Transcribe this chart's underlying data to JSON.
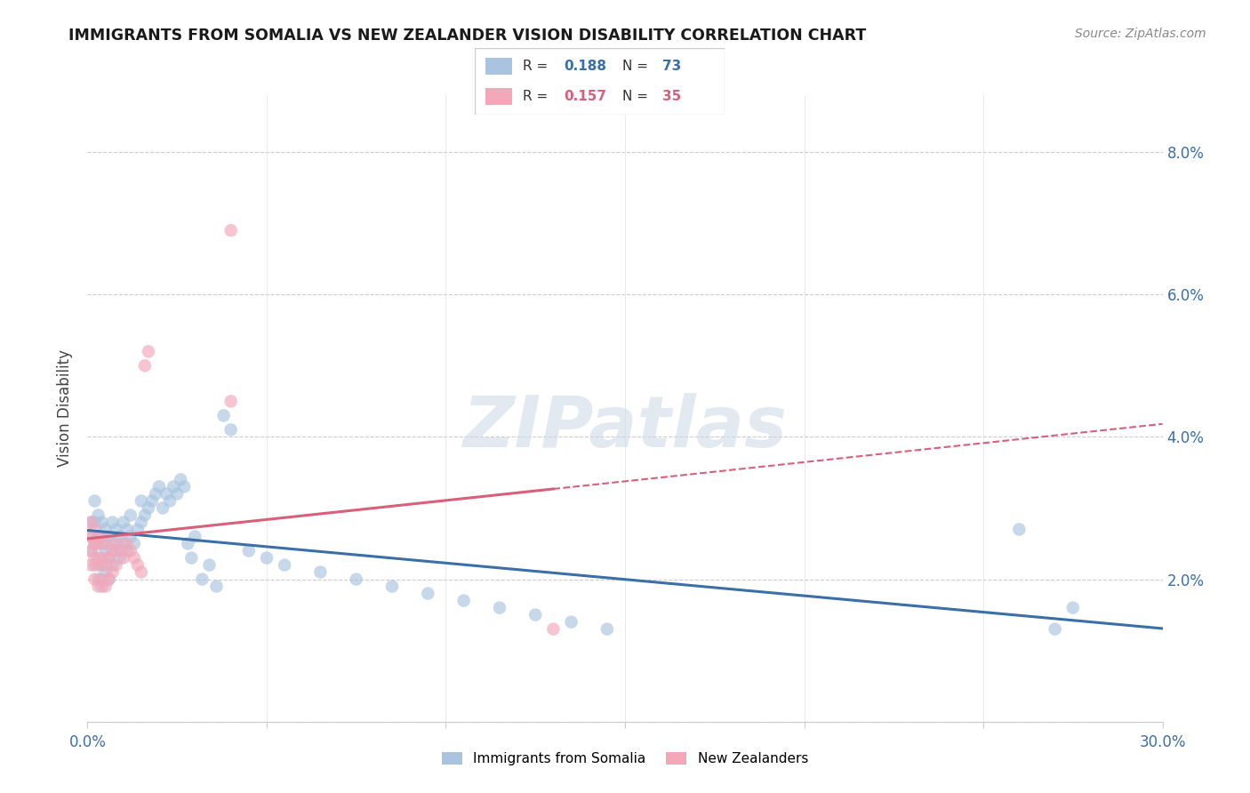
{
  "title": "IMMIGRANTS FROM SOMALIA VS NEW ZEALANDER VISION DISABILITY CORRELATION CHART",
  "source": "Source: ZipAtlas.com",
  "ylabel": "Vision Disability",
  "xlim": [
    0.0,
    0.3
  ],
  "ylim": [
    0.0,
    0.088
  ],
  "blue_R": 0.188,
  "blue_N": 73,
  "pink_R": 0.157,
  "pink_N": 35,
  "blue_color": "#a8c4e0",
  "pink_color": "#f4a7b9",
  "blue_line_color": "#3a6fa8",
  "pink_line_color": "#d95f7a",
  "watermark": "ZIPatlas",
  "blue_x": [
    0.001,
    0.001,
    0.001,
    0.002,
    0.002,
    0.002,
    0.002,
    0.003,
    0.003,
    0.003,
    0.003,
    0.004,
    0.004,
    0.004,
    0.004,
    0.005,
    0.005,
    0.005,
    0.006,
    0.006,
    0.006,
    0.007,
    0.007,
    0.007,
    0.008,
    0.008,
    0.009,
    0.009,
    0.01,
    0.01,
    0.011,
    0.011,
    0.012,
    0.012,
    0.013,
    0.014,
    0.015,
    0.015,
    0.016,
    0.017,
    0.018,
    0.019,
    0.02,
    0.021,
    0.022,
    0.023,
    0.024,
    0.025,
    0.026,
    0.027,
    0.028,
    0.029,
    0.03,
    0.032,
    0.034,
    0.036,
    0.038,
    0.04,
    0.045,
    0.05,
    0.055,
    0.065,
    0.075,
    0.085,
    0.095,
    0.105,
    0.115,
    0.125,
    0.135,
    0.145,
    0.26,
    0.27,
    0.275
  ],
  "blue_y": [
    0.024,
    0.026,
    0.028,
    0.022,
    0.025,
    0.028,
    0.031,
    0.02,
    0.023,
    0.026,
    0.029,
    0.019,
    0.022,
    0.025,
    0.028,
    0.021,
    0.024,
    0.027,
    0.02,
    0.023,
    0.026,
    0.022,
    0.025,
    0.028,
    0.024,
    0.027,
    0.023,
    0.026,
    0.025,
    0.028,
    0.024,
    0.027,
    0.026,
    0.029,
    0.025,
    0.027,
    0.028,
    0.031,
    0.029,
    0.03,
    0.031,
    0.032,
    0.033,
    0.03,
    0.032,
    0.031,
    0.033,
    0.032,
    0.034,
    0.033,
    0.025,
    0.023,
    0.026,
    0.02,
    0.022,
    0.019,
    0.043,
    0.041,
    0.024,
    0.023,
    0.022,
    0.021,
    0.02,
    0.019,
    0.018,
    0.017,
    0.016,
    0.015,
    0.014,
    0.013,
    0.027,
    0.013,
    0.016
  ],
  "pink_x": [
    0.001,
    0.001,
    0.001,
    0.001,
    0.002,
    0.002,
    0.002,
    0.002,
    0.003,
    0.003,
    0.003,
    0.004,
    0.004,
    0.004,
    0.005,
    0.005,
    0.005,
    0.006,
    0.006,
    0.007,
    0.007,
    0.008,
    0.008,
    0.009,
    0.01,
    0.011,
    0.012,
    0.013,
    0.014,
    0.015,
    0.016,
    0.017,
    0.04,
    0.13,
    0.04
  ],
  "pink_y": [
    0.022,
    0.024,
    0.026,
    0.028,
    0.02,
    0.023,
    0.025,
    0.027,
    0.019,
    0.022,
    0.025,
    0.02,
    0.023,
    0.026,
    0.019,
    0.022,
    0.025,
    0.02,
    0.023,
    0.021,
    0.024,
    0.022,
    0.025,
    0.024,
    0.023,
    0.025,
    0.024,
    0.023,
    0.022,
    0.021,
    0.05,
    0.052,
    0.069,
    0.013,
    0.045
  ]
}
